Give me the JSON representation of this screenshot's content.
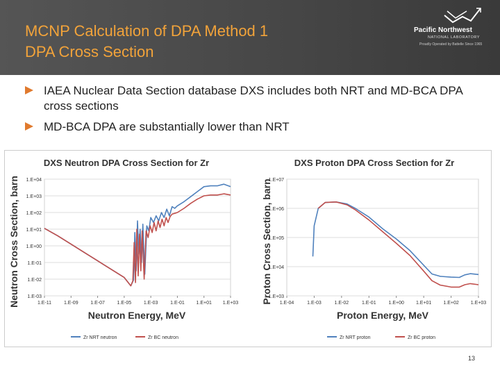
{
  "slide": {
    "title_line1": "MCNP Calculation of DPA Method 1",
    "title_line2": "DPA Cross Section",
    "logo": {
      "name": "Pacific Northwest",
      "subtitle": "NATIONAL LABORATORY",
      "tagline": "Proudly Operated by Battelle Since 1965"
    },
    "bullets": [
      {
        "text": "IAEA Nuclear Data Section database DXS includes both NRT and MD-BCA DPA cross sections"
      },
      {
        "text": "MD-BCA DPA are substantially lower than NRT"
      }
    ],
    "page_number": "13"
  },
  "colors": {
    "title": "#f2a33a",
    "nrt": "#4f81bd",
    "bc": "#c0504d",
    "bullet_arrow": "#e07a2e"
  },
  "chart_data": [
    {
      "type": "line",
      "title": "DXS Neutron DPA Cross Section for Zr",
      "xlabel": "Neutron Energy, MeV",
      "ylabel": "Neutron Cross Section, barn",
      "xscale": "log",
      "yscale": "log",
      "xlim_exp": [
        -11,
        3
      ],
      "ylim_exp": [
        -3,
        4
      ],
      "xticks": [
        "1.E-11",
        "1.E-09",
        "1.E-07",
        "1.E-05",
        "1.E-03",
        "1.E-01",
        "1.E+01",
        "1.E+03"
      ],
      "xtick_exps": [
        -11,
        -9,
        -7,
        -5,
        -3,
        -1,
        1,
        3
      ],
      "yticks": [
        "1.E-03",
        "1.E-02",
        "1.E-01",
        "1.E+00",
        "1.E+01",
        "1.E+02",
        "1.E+03",
        "1.E+04"
      ],
      "ytick_exps": [
        -3,
        -2,
        -1,
        0,
        1,
        2,
        3,
        4
      ],
      "legend_position": "bottom",
      "series": [
        {
          "name": "Zr NRT neutron",
          "color": "#4f81bd",
          "points": [
            [
              -11,
              1.05
            ],
            [
              -10,
              0.6
            ],
            [
              -9,
              0.1
            ],
            [
              -8,
              -0.4
            ],
            [
              -7,
              -0.9
            ],
            [
              -6,
              -1.4
            ],
            [
              -5,
              -1.9
            ],
            [
              -4.5,
              -2.4
            ],
            [
              -4.3,
              -2.05
            ],
            [
              -4.2,
              0.8
            ],
            [
              -4.1,
              -1.5
            ],
            [
              -4.0,
              1.5
            ],
            [
              -3.9,
              -0.5
            ],
            [
              -3.8,
              1.0
            ],
            [
              -3.7,
              -1.0
            ],
            [
              -3.6,
              1.3
            ],
            [
              -3.45,
              -1.7
            ],
            [
              -3.3,
              1.2
            ],
            [
              -3.15,
              0.9
            ],
            [
              -3.0,
              1.7
            ],
            [
              -2.8,
              1.4
            ],
            [
              -2.6,
              1.8
            ],
            [
              -2.4,
              1.5
            ],
            [
              -2.2,
              2.0
            ],
            [
              -2.0,
              1.7
            ],
            [
              -1.8,
              2.2
            ],
            [
              -1.6,
              1.8
            ],
            [
              -1.4,
              2.35
            ],
            [
              -1.2,
              2.25
            ],
            [
              -1,
              2.4
            ],
            [
              -0.5,
              2.65
            ],
            [
              0,
              2.95
            ],
            [
              0.5,
              3.25
            ],
            [
              1,
              3.55
            ],
            [
              1.5,
              3.6
            ],
            [
              2,
              3.6
            ],
            [
              2.5,
              3.7
            ],
            [
              3,
              3.55
            ]
          ]
        },
        {
          "name": "Zr BC neutron",
          "color": "#c0504d",
          "points": [
            [
              -11,
              1.05
            ],
            [
              -10,
              0.6
            ],
            [
              -9,
              0.1
            ],
            [
              -8,
              -0.4
            ],
            [
              -7,
              -0.9
            ],
            [
              -6,
              -1.4
            ],
            [
              -5,
              -1.9
            ],
            [
              -4.5,
              -2.4
            ],
            [
              -4.35,
              -2.1
            ],
            [
              -4.25,
              0.2
            ],
            [
              -4.15,
              -2.2
            ],
            [
              -4.05,
              1.0
            ],
            [
              -3.95,
              -1.8
            ],
            [
              -3.85,
              0.7
            ],
            [
              -3.75,
              -1.5
            ],
            [
              -3.65,
              0.9
            ],
            [
              -3.5,
              -2.0
            ],
            [
              -3.35,
              0.9
            ],
            [
              -3.2,
              0.5
            ],
            [
              -3.05,
              1.2
            ],
            [
              -2.9,
              0.8
            ],
            [
              -2.75,
              1.4
            ],
            [
              -2.6,
              0.9
            ],
            [
              -2.45,
              1.5
            ],
            [
              -2.3,
              1.1
            ],
            [
              -2.15,
              1.6
            ],
            [
              -2.0,
              1.2
            ],
            [
              -1.85,
              1.7
            ],
            [
              -1.7,
              1.4
            ],
            [
              -1.55,
              1.75
            ],
            [
              -1.4,
              1.9
            ],
            [
              -1.2,
              1.95
            ],
            [
              -1,
              2.0
            ],
            [
              -0.5,
              2.25
            ],
            [
              0,
              2.55
            ],
            [
              0.5,
              2.8
            ],
            [
              1,
              3.0
            ],
            [
              1.5,
              3.05
            ],
            [
              2,
              3.05
            ],
            [
              2.5,
              3.12
            ],
            [
              3,
              3.05
            ]
          ]
        }
      ]
    },
    {
      "type": "line",
      "title": "DXS Proton DPA Cross Section for Zr",
      "xlabel": "Proton Energy, MeV",
      "ylabel": "Proton Cross Section, barn",
      "xscale": "log",
      "yscale": "log",
      "xlim_exp": [
        -4,
        3
      ],
      "ylim_exp": [
        3,
        7
      ],
      "xticks": [
        "1.E-04",
        "1.E-03",
        "1.E-02",
        "1.E-01",
        "1.E+00",
        "1.E+01",
        "1.E+02",
        "1.E+03"
      ],
      "xtick_exps": [
        -4,
        -3,
        -2,
        -1,
        0,
        1,
        2,
        3
      ],
      "yticks": [
        "1.E+03",
        "1.E+04",
        "1.E+05",
        "1.E+06",
        "1.E+07"
      ],
      "ytick_exps": [
        3,
        4,
        5,
        6,
        7
      ],
      "legend_position": "bottom",
      "series": [
        {
          "name": "Zr NRT proton",
          "color": "#4f81bd",
          "points": [
            [
              -3.05,
              4.35
            ],
            [
              -3.0,
              5.4
            ],
            [
              -2.85,
              6.0
            ],
            [
              -2.6,
              6.2
            ],
            [
              -2.2,
              6.22
            ],
            [
              -1.8,
              6.15
            ],
            [
              -1.5,
              6.0
            ],
            [
              -1,
              5.7
            ],
            [
              -0.5,
              5.3
            ],
            [
              0,
              4.95
            ],
            [
              0.5,
              4.55
            ],
            [
              1,
              4.05
            ],
            [
              1.3,
              3.75
            ],
            [
              1.6,
              3.67
            ],
            [
              2,
              3.64
            ],
            [
              2.3,
              3.63
            ],
            [
              2.5,
              3.72
            ],
            [
              2.7,
              3.76
            ],
            [
              3,
              3.73
            ]
          ]
        },
        {
          "name": "Zr BC proton",
          "color": "#c0504d",
          "points": [
            [
              -2.85,
              6.0
            ],
            [
              -2.6,
              6.2
            ],
            [
              -2.2,
              6.22
            ],
            [
              -1.8,
              6.12
            ],
            [
              -1.5,
              5.95
            ],
            [
              -1,
              5.6
            ],
            [
              -0.5,
              5.2
            ],
            [
              0,
              4.8
            ],
            [
              0.5,
              4.38
            ],
            [
              1,
              3.85
            ],
            [
              1.3,
              3.52
            ],
            [
              1.6,
              3.37
            ],
            [
              2,
              3.3
            ],
            [
              2.3,
              3.3
            ],
            [
              2.5,
              3.38
            ],
            [
              2.7,
              3.42
            ],
            [
              3,
              3.38
            ]
          ]
        }
      ]
    }
  ]
}
